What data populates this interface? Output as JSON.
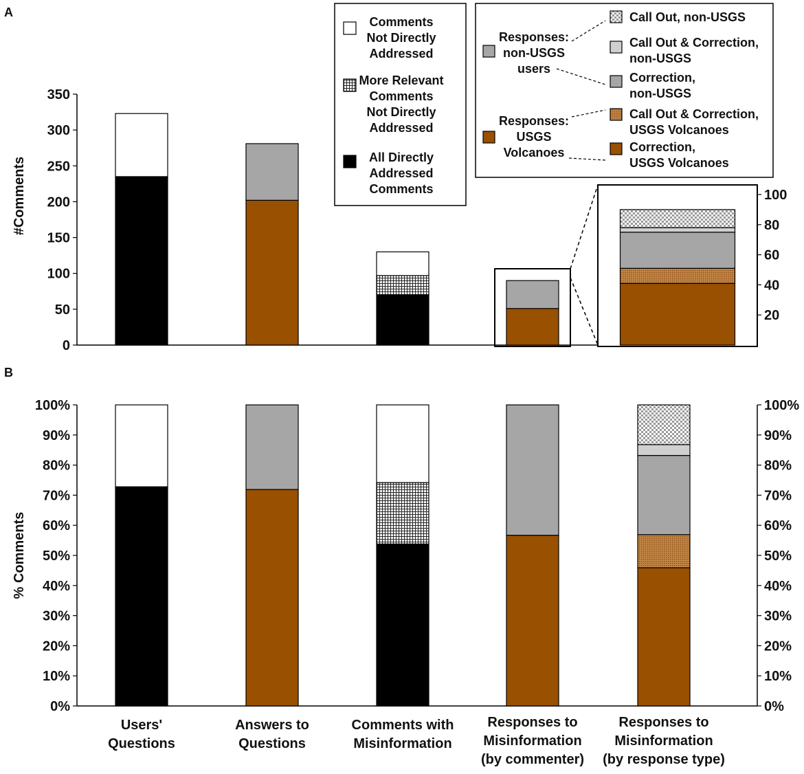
{
  "colors": {
    "black": "#000000",
    "brown": "#995000",
    "gray": "#a6a6a6",
    "light_gray": "#d0d0d0",
    "white": "#ffffff",
    "hatch_line": "#555555",
    "tan": "#c58a4a"
  },
  "chart_data": [
    {
      "panel": "A",
      "type": "bar",
      "stacked": true,
      "ylabel": "#Comments",
      "ylim": [
        0,
        350
      ],
      "yticks": [
        "0",
        "50",
        "100",
        "150",
        "200",
        "250",
        "300",
        "350"
      ],
      "bars": [
        {
          "category": "Users' Questions",
          "segments": [
            {
              "name": "All Directly Addressed Comments",
              "value": 235,
              "style": "black"
            },
            {
              "name": "Comments Not Directly Addressed",
              "value": 88,
              "style": "white"
            }
          ]
        },
        {
          "category": "Answers to Questions",
          "segments": [
            {
              "name": "Responses: USGS Volcanoes",
              "value": 202,
              "style": "brown"
            },
            {
              "name": "Responses: non-USGS users",
              "value": 79,
              "style": "gray"
            }
          ]
        },
        {
          "category": "Comments with Misinformation",
          "segments": [
            {
              "name": "All Directly Addressed Comments",
              "value": 70,
              "style": "black"
            },
            {
              "name": "More Relevant Comments Not Directly Addressed",
              "value": 27,
              "style": "grid"
            },
            {
              "name": "Comments Not Directly Addressed",
              "value": 33,
              "style": "white"
            }
          ]
        },
        {
          "category": "Responses to Misinformation (by commenter)",
          "segments": [
            {
              "name": "Responses: USGS Volcanoes",
              "value": 51,
              "style": "brown"
            },
            {
              "name": "Responses: non-USGS users",
              "value": 39,
              "style": "gray"
            }
          ]
        }
      ],
      "inset": {
        "ylim": [
          0,
          100
        ],
        "yticks": [
          "20",
          "40",
          "60",
          "80",
          "100"
        ],
        "segments": [
          {
            "name": "Correction, USGS Volcanoes",
            "value": 41,
            "style": "brown"
          },
          {
            "name": "Call Out & Correction, USGS Volcanoes",
            "value": 10,
            "style": "brown-dot"
          },
          {
            "name": "Correction, non-USGS",
            "value": 24,
            "style": "gray"
          },
          {
            "name": "Call Out & Correction, non-USGS",
            "value": 3,
            "style": "light-gray"
          },
          {
            "name": "Call Out, non-USGS",
            "value": 12,
            "style": "checker"
          }
        ]
      }
    },
    {
      "panel": "B",
      "type": "bar",
      "stacked": true,
      "ylabel": "% Comments",
      "ylim": [
        0,
        100
      ],
      "yticks": [
        "0%",
        "10%",
        "20%",
        "30%",
        "40%",
        "50%",
        "60%",
        "70%",
        "80%",
        "90%",
        "100%"
      ],
      "categories": [
        "Users' Questions",
        "Answers to Questions",
        "Comments with Misinformation",
        "Responses to Misinformation (by commenter)",
        "Responses to Misinformation (by response type)"
      ],
      "bars": [
        {
          "category": "Users' Questions",
          "segments": [
            {
              "name": "All Directly Addressed Comments",
              "value": 72.8,
              "style": "black"
            },
            {
              "name": "Comments Not Directly Addressed",
              "value": 27.2,
              "style": "white"
            }
          ]
        },
        {
          "category": "Answers to Questions",
          "segments": [
            {
              "name": "Responses: USGS Volcanoes",
              "value": 71.9,
              "style": "brown"
            },
            {
              "name": "Responses: non-USGS users",
              "value": 28.1,
              "style": "gray"
            }
          ]
        },
        {
          "category": "Comments with Misinformation",
          "segments": [
            {
              "name": "All Directly Addressed Comments",
              "value": 53.8,
              "style": "black"
            },
            {
              "name": "More Relevant Comments Not Directly Addressed",
              "value": 20.4,
              "style": "grid"
            },
            {
              "name": "Comments Not Directly Addressed",
              "value": 25.8,
              "style": "white"
            }
          ]
        },
        {
          "category": "Responses to Misinformation (by commenter)",
          "segments": [
            {
              "name": "Responses: USGS Volcanoes",
              "value": 56.7,
              "style": "brown"
            },
            {
              "name": "Responses: non-USGS users",
              "value": 43.3,
              "style": "gray"
            }
          ]
        },
        {
          "category": "Responses to Misinformation (by response type)",
          "segments": [
            {
              "name": "Correction, USGS Volcanoes",
              "value": 45.9,
              "style": "brown"
            },
            {
              "name": "Call Out & Correction, USGS Volcanoes",
              "value": 11.0,
              "style": "brown-dot"
            },
            {
              "name": "Correction, non-USGS",
              "value": 26.3,
              "style": "gray"
            },
            {
              "name": "Call Out & Correction, non-USGS",
              "value": 3.6,
              "style": "light-gray"
            },
            {
              "name": "Call Out, non-USGS",
              "value": 13.2,
              "style": "checker"
            }
          ]
        }
      ]
    }
  ],
  "labels": {
    "panel_a": "A",
    "panel_b": "B",
    "cat1": [
      "Users'",
      "Questions"
    ],
    "cat2": [
      "Answers to",
      "Questions"
    ],
    "cat3": [
      "Comments with",
      "Misinformation"
    ],
    "cat4": [
      "Responses to",
      "Misinformation",
      "(by commenter)"
    ],
    "cat5": [
      "Responses to",
      "Misinformation",
      "(by response type)"
    ]
  },
  "legend1": [
    {
      "style": "white",
      "lines": [
        "Comments",
        "Not Directly",
        "Addressed"
      ]
    },
    {
      "style": "grid",
      "lines": [
        "More Relevant",
        "Comments",
        "Not Directly",
        "Addressed"
      ]
    },
    {
      "style": "black",
      "lines": [
        "All Directly",
        "Addressed",
        "Comments"
      ]
    }
  ],
  "legend2": {
    "groups": [
      {
        "style": "gray",
        "lines": [
          "Responses:",
          "non-USGS",
          "users"
        ]
      },
      {
        "style": "brown",
        "lines": [
          "Responses:",
          "USGS",
          "Volcanoes"
        ]
      }
    ],
    "items": [
      {
        "style": "checker",
        "lines": [
          "Call Out, non-USGS"
        ]
      },
      {
        "style": "light-gray",
        "lines": [
          "Call Out & Correction,",
          "non-USGS"
        ]
      },
      {
        "style": "gray",
        "lines": [
          "Correction,",
          "non-USGS"
        ]
      },
      {
        "style": "brown-dot",
        "lines": [
          "Call Out & Correction,",
          "USGS Volcanoes"
        ]
      },
      {
        "style": "brown",
        "lines": [
          "Correction,",
          "USGS Volcanoes"
        ]
      }
    ]
  }
}
